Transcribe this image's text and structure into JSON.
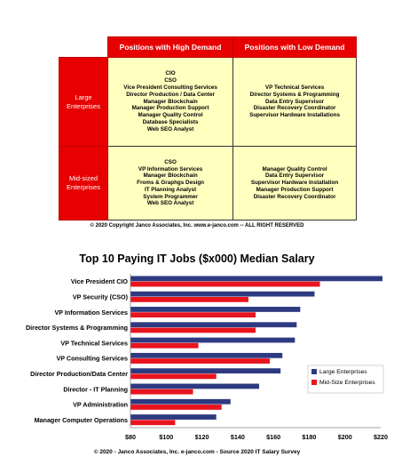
{
  "matrix": {
    "col_high": "Positions with High Demand",
    "col_low": "Positions with Low Demand",
    "row_large": "Large Enterprises",
    "row_mid": "Mid-sized Enterprises",
    "large_high": [
      "CIO",
      "CSO",
      "Vice President Consulting Services",
      "Director Production / Data Center",
      "Manager Blockchain",
      "Manager Production Support",
      "Manager Quality Control",
      "Database Specialists",
      "Web SEO Analyst"
    ],
    "large_low": [
      "VP Technical Services",
      "Director Systems & Programming",
      "Data Entry Supervisor",
      "Disaster Recovery Coordinator",
      "Supervisor Hardware Installations"
    ],
    "mid_high": [
      "CSO",
      "VP Information Services",
      "Manager Blockchain",
      "Froms & Graphgs Design",
      "IT Planning Analyst",
      "System Programmer",
      "Web SEO Analyst"
    ],
    "mid_low": [
      "Manager Quality Control",
      "Data Entry Supervisor",
      "Supervisor Hardware Installation",
      "Manager Production Support",
      "Disaster Recovery Coordinator"
    ]
  },
  "matrix_copyright": "© 2020 Copyright Janco Associates, Inc. www.e-janco.com -- ALL RIGHT RESERVED",
  "chart_copyright": "© 2020 - Janco Associates, Inc. e-janco.com - Source 2020 IT Salary Survey",
  "colors": {
    "large": "#2e3a80",
    "mid": "#e8141e",
    "header_red": "#e60000",
    "cell_yellow": "#ffffc0"
  },
  "chart_data": {
    "type": "bar",
    "orientation": "horizontal",
    "title": "Top 10 Paying IT Jobs ($x000) Median Salary",
    "categories": [
      "Vice President CIO",
      "VP Security (CSO)",
      "VP Information Services",
      "Director Systems & Programming",
      "VP Technical Services",
      "VP Consulting Services",
      "Director Production/Data Center",
      "Director - IT Planning",
      "VP Administration",
      "Manager Computer Operations"
    ],
    "series": [
      {
        "name": "Large Enterprises",
        "color": "#2e3a80",
        "values": [
          221,
          183,
          175,
          173,
          172,
          165,
          164,
          152,
          136,
          128
        ]
      },
      {
        "name": "Mid-Size Enterprises",
        "color": "#e8141e",
        "values": [
          186,
          146,
          150,
          150,
          118,
          158,
          128,
          115,
          131,
          105
        ]
      }
    ],
    "xlim": [
      80,
      220
    ],
    "xticks": [
      "$80",
      "$100",
      "$120",
      "$140",
      "$160",
      "$180",
      "$200",
      "$220"
    ],
    "legend": "right",
    "grid": false
  }
}
